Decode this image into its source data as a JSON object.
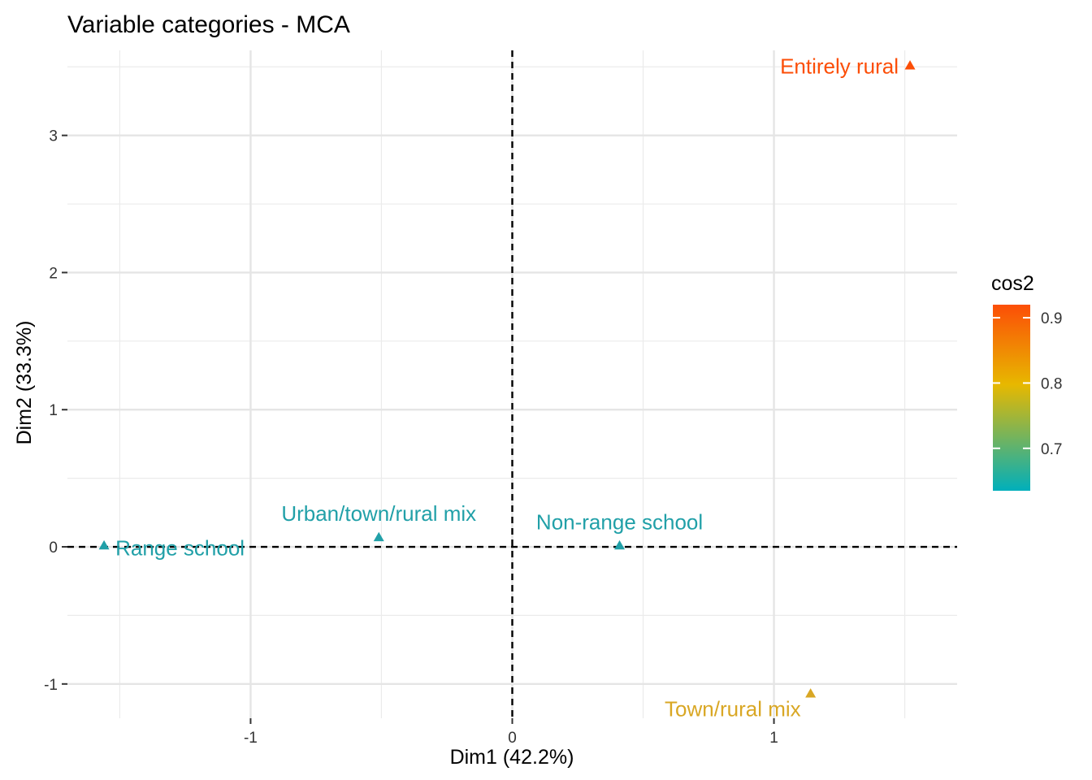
{
  "chart_data": {
    "type": "scatter",
    "title": "Variable categories - MCA",
    "xlabel": "Dim1 (42.2%)",
    "ylabel": "Dim2 (33.3%)",
    "xlim": [
      -1.7,
      1.7
    ],
    "ylim": [
      -1.25,
      3.62
    ],
    "xticks": [
      -1,
      0,
      1
    ],
    "yticks": [
      -1,
      0,
      1,
      2,
      3
    ],
    "xtick_labels": [
      "-1",
      "0",
      "1"
    ],
    "ytick_labels": [
      "-1",
      "0",
      "1",
      "2",
      "3"
    ],
    "grid": true,
    "reference_lines": {
      "x": 0,
      "y": 0,
      "style": "dashed"
    },
    "points": [
      {
        "label": "Entirely rural",
        "x": 1.52,
        "y": 3.51,
        "cos2": 0.92,
        "color": "#FC4E07",
        "label_anchor": "end"
      },
      {
        "label": "Urban/town/rural mix",
        "x": -0.51,
        "y": 0.07,
        "cos2": 0.64,
        "color": "#21A0A8",
        "label_anchor": "above"
      },
      {
        "label": "Non-range school",
        "x": 0.41,
        "y": 0.01,
        "cos2": 0.64,
        "color": "#21A0A8",
        "label_anchor": "above"
      },
      {
        "label": "Range school",
        "x": -1.56,
        "y": 0.01,
        "cos2": 0.64,
        "color": "#21A0A8",
        "label_anchor": "start"
      },
      {
        "label": "Town/rural mix",
        "x": 1.14,
        "y": -1.07,
        "cos2": 0.78,
        "color": "#D9A724",
        "label_anchor": "below-left"
      }
    ],
    "legend": {
      "title": "cos2",
      "position": "right",
      "type": "gradient",
      "colors": [
        "#00AFBB",
        "#E7B800",
        "#FC4E07"
      ],
      "range": [
        0.635,
        0.92
      ],
      "ticks": [
        0.7,
        0.8,
        0.9
      ],
      "tick_labels": [
        "0.7",
        "0.8",
        "0.9"
      ]
    }
  }
}
